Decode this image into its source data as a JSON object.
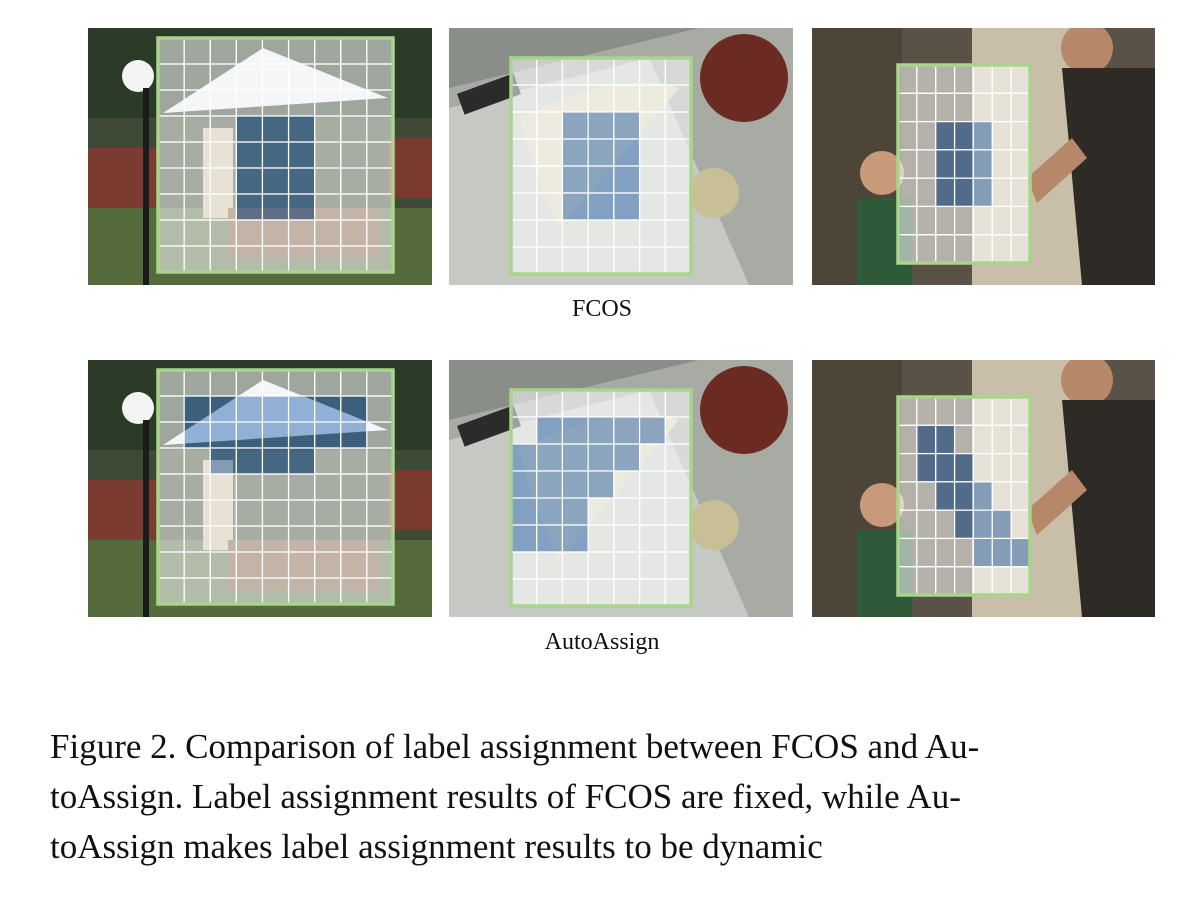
{
  "figure": {
    "rows": [
      {
        "label": "FCOS",
        "panels": [
          {
            "scene": "garden-umbrella",
            "grid": {
              "cols": 9,
              "rows": 9
            },
            "highlight": "center-block"
          },
          {
            "scene": "banana-apple",
            "grid": {
              "cols": 7,
              "rows": 8
            },
            "highlight": "center-block"
          },
          {
            "scene": "two-people-door",
            "grid": {
              "cols": 7,
              "rows": 7
            },
            "highlight": "center-block"
          }
        ]
      },
      {
        "label": "AutoAssign",
        "panels": [
          {
            "scene": "garden-umbrella",
            "grid": {
              "cols": 9,
              "rows": 9
            },
            "highlight": "umbrella-region"
          },
          {
            "scene": "banana-apple",
            "grid": {
              "cols": 7,
              "rows": 8
            },
            "highlight": "banana-region"
          },
          {
            "scene": "two-people-door",
            "grid": {
              "cols": 7,
              "rows": 7
            },
            "highlight": "person-region"
          }
        ]
      }
    ],
    "caption_lines": [
      "Figure 2. Comparison of label assignment between FCOS and Au-",
      "toAssign. Label assignment results of FCOS are fixed, while Au-",
      "toAssign makes label assignment results to be dynamic"
    ],
    "colors": {
      "box_border": "#a8d48c",
      "grid_line": "#ffffff",
      "positive_cell": "#4a7fc1",
      "negative_overlay": "#ffffff"
    }
  }
}
